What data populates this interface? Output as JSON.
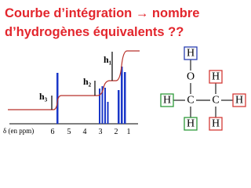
{
  "title": {
    "line1": "Courbe d’intégration → nombre",
    "line2": "d’hydrogènes équivalents ??"
  },
  "spectrum": {
    "axis_label": "δ (en ppm)",
    "ticks": [
      6,
      5,
      4,
      3,
      2,
      1
    ],
    "integrals": [
      "h₁",
      "h₂",
      "h₃"
    ]
  },
  "molecule": {
    "atoms": [
      "H",
      "O",
      "C",
      "C",
      "H",
      "H",
      "H",
      "H",
      "H"
    ]
  }
}
